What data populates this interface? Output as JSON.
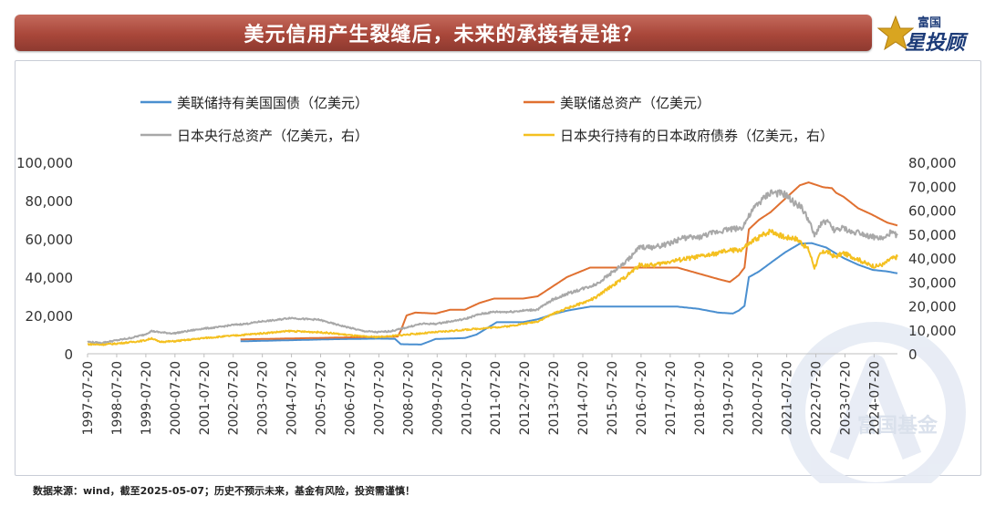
{
  "header": {
    "title": "美元信用产生裂缝后，未来的承接者是谁？",
    "logo_top": "富国",
    "logo_bottom": "星投顾"
  },
  "watermark": "富国基金",
  "footer": {
    "source": "数据来源：wind，截至2025-05-07；历史不预示未来，基金有风险，投资需谨慎！"
  },
  "colors": {
    "title_bar": "#a9473a",
    "fed_treasury": "#4a8fd0",
    "fed_total": "#e07030",
    "boj_total": "#a8a8a8",
    "boj_jgb": "#f4c020",
    "brand": "#1c3b78"
  },
  "chart_data": {
    "type": "line",
    "legend": [
      "美联储持有美国国债（亿美元）",
      "美联储总资产（亿美元）",
      "日本央行总资产（亿美元，右）",
      "日本央行持有的日本政府债券（亿美元，右）"
    ],
    "x_tick_labels": [
      "1997-07-20",
      "1998-07-20",
      "1999-07-20",
      "2000-07-20",
      "2001-07-20",
      "2002-07-20",
      "2003-07-20",
      "2004-07-20",
      "2005-07-20",
      "2006-07-20",
      "2007-07-20",
      "2008-07-20",
      "2009-07-20",
      "2010-07-20",
      "2011-07-20",
      "2012-07-20",
      "2013-07-20",
      "2014-07-20",
      "2015-07-20",
      "2016-07-20",
      "2017-07-20",
      "2018-07-20",
      "2019-07-20",
      "2020-07-20",
      "2021-07-20",
      "2022-07-20",
      "2023-07-20",
      "2024-07-20"
    ],
    "x_range": [
      1997.55,
      2025.35
    ],
    "y_left": {
      "min": 0,
      "max": 100000,
      "ticks": [
        "0",
        "20,000",
        "40,000",
        "60,000",
        "80,000",
        "100,000"
      ]
    },
    "y_right": {
      "min": 0,
      "max": 80000,
      "ticks": [
        "0",
        "10,000",
        "20,000",
        "30,000",
        "40,000",
        "50,000",
        "60,000",
        "70,000",
        "80,000"
      ]
    },
    "series": [
      {
        "name": "美联储持有美国国债（亿美元）",
        "axis": "left",
        "color": "#4a8fd0",
        "points": [
          [
            2002.8,
            6500
          ],
          [
            2006.0,
            7600
          ],
          [
            2007.5,
            7900
          ],
          [
            2008.1,
            7800
          ],
          [
            2008.3,
            5000
          ],
          [
            2009.0,
            4800
          ],
          [
            2009.5,
            7700
          ],
          [
            2010.5,
            8200
          ],
          [
            2010.9,
            10000
          ],
          [
            2011.6,
            16500
          ],
          [
            2012.5,
            16500
          ],
          [
            2013.0,
            18000
          ],
          [
            2013.5,
            20500
          ],
          [
            2014.0,
            22500
          ],
          [
            2014.8,
            24600
          ],
          [
            2017.8,
            24600
          ],
          [
            2018.5,
            23500
          ],
          [
            2019.2,
            21500
          ],
          [
            2019.7,
            21000
          ],
          [
            2019.9,
            22500
          ],
          [
            2020.1,
            25000
          ],
          [
            2020.25,
            40000
          ],
          [
            2020.6,
            43000
          ],
          [
            2021.0,
            47500
          ],
          [
            2021.5,
            53000
          ],
          [
            2022.0,
            57500
          ],
          [
            2022.4,
            57800
          ],
          [
            2022.9,
            55500
          ],
          [
            2023.5,
            50000
          ],
          [
            2024.0,
            46500
          ],
          [
            2024.5,
            43800
          ],
          [
            2025.0,
            43000
          ],
          [
            2025.35,
            42000
          ]
        ]
      },
      {
        "name": "美联储总资产（亿美元）",
        "axis": "left",
        "color": "#e07030",
        "points": [
          [
            2002.8,
            7500
          ],
          [
            2006.0,
            8400
          ],
          [
            2007.5,
            8800
          ],
          [
            2008.2,
            9000
          ],
          [
            2008.3,
            12000
          ],
          [
            2008.5,
            20000
          ],
          [
            2008.8,
            21500
          ],
          [
            2009.5,
            21000
          ],
          [
            2010.0,
            23000
          ],
          [
            2010.5,
            23000
          ],
          [
            2011.0,
            26500
          ],
          [
            2011.5,
            28800
          ],
          [
            2012.5,
            28800
          ],
          [
            2013.0,
            30000
          ],
          [
            2013.5,
            35000
          ],
          [
            2014.0,
            40000
          ],
          [
            2014.8,
            45000
          ],
          [
            2017.8,
            45000
          ],
          [
            2018.5,
            42000
          ],
          [
            2019.2,
            39000
          ],
          [
            2019.6,
            37500
          ],
          [
            2019.9,
            41000
          ],
          [
            2020.1,
            45000
          ],
          [
            2020.25,
            65000
          ],
          [
            2020.6,
            70000
          ],
          [
            2021.0,
            74000
          ],
          [
            2021.5,
            81000
          ],
          [
            2022.0,
            88000
          ],
          [
            2022.3,
            89500
          ],
          [
            2022.8,
            87000
          ],
          [
            2023.1,
            86500
          ],
          [
            2023.25,
            84000
          ],
          [
            2023.5,
            82000
          ],
          [
            2024.0,
            76000
          ],
          [
            2024.5,
            72500
          ],
          [
            2025.0,
            68500
          ],
          [
            2025.35,
            67000
          ]
        ]
      },
      {
        "name": "日本央行总资产（亿美元，右）",
        "axis": "right",
        "color": "#a8a8a8",
        "points": [
          [
            1997.55,
            5000
          ],
          [
            1998.0,
            4500
          ],
          [
            1998.5,
            5500
          ],
          [
            1999.0,
            6500
          ],
          [
            1999.5,
            8000
          ],
          [
            1999.75,
            9500
          ],
          [
            2000.0,
            9000
          ],
          [
            2000.5,
            8500
          ],
          [
            2001.0,
            9500
          ],
          [
            2001.5,
            10500
          ],
          [
            2002.0,
            11000
          ],
          [
            2002.5,
            12000
          ],
          [
            2003.0,
            12500
          ],
          [
            2003.5,
            13500
          ],
          [
            2004.0,
            14000
          ],
          [
            2004.5,
            15000
          ],
          [
            2005.0,
            14500
          ],
          [
            2005.5,
            14200
          ],
          [
            2006.0,
            12500
          ],
          [
            2006.5,
            11000
          ],
          [
            2007.0,
            9500
          ],
          [
            2007.5,
            9000
          ],
          [
            2008.0,
            9500
          ],
          [
            2008.5,
            11000
          ],
          [
            2009.0,
            12500
          ],
          [
            2009.5,
            12500
          ],
          [
            2010.0,
            13500
          ],
          [
            2010.5,
            14500
          ],
          [
            2011.0,
            16500
          ],
          [
            2011.5,
            17500
          ],
          [
            2012.0,
            17500
          ],
          [
            2012.5,
            18000
          ],
          [
            2013.0,
            18500
          ],
          [
            2013.5,
            22500
          ],
          [
            2014.0,
            25000
          ],
          [
            2014.5,
            27000
          ],
          [
            2015.0,
            29000
          ],
          [
            2015.5,
            33500
          ],
          [
            2016.0,
            38000
          ],
          [
            2016.5,
            44500
          ],
          [
            2017.0,
            44500
          ],
          [
            2017.5,
            46000
          ],
          [
            2018.0,
            48500
          ],
          [
            2018.5,
            48500
          ],
          [
            2019.0,
            50500
          ],
          [
            2019.5,
            52000
          ],
          [
            2020.0,
            52500
          ],
          [
            2020.5,
            62000
          ],
          [
            2021.0,
            67500
          ],
          [
            2021.5,
            66500
          ],
          [
            2021.8,
            63000
          ],
          [
            2022.0,
            62000
          ],
          [
            2022.3,
            56000
          ],
          [
            2022.5,
            49000
          ],
          [
            2022.7,
            54000
          ],
          [
            2022.9,
            55500
          ],
          [
            2023.2,
            51500
          ],
          [
            2023.5,
            52500
          ],
          [
            2023.8,
            50500
          ],
          [
            2024.0,
            51000
          ],
          [
            2024.3,
            49500
          ],
          [
            2024.6,
            48500
          ],
          [
            2024.9,
            48000
          ],
          [
            2025.1,
            50500
          ],
          [
            2025.35,
            49500
          ]
        ]
      },
      {
        "name": "日本央行持有的日本政府债券（亿美元，右）",
        "axis": "right",
        "color": "#f4c020",
        "points": [
          [
            1997.55,
            4000
          ],
          [
            1998.0,
            3800
          ],
          [
            1998.5,
            4200
          ],
          [
            1999.0,
            4800
          ],
          [
            1999.5,
            5500
          ],
          [
            1999.75,
            6500
          ],
          [
            2000.0,
            5000
          ],
          [
            2000.5,
            5200
          ],
          [
            2001.0,
            5800
          ],
          [
            2001.5,
            6500
          ],
          [
            2002.0,
            7000
          ],
          [
            2002.5,
            7500
          ],
          [
            2003.0,
            8000
          ],
          [
            2003.5,
            8500
          ],
          [
            2004.0,
            9000
          ],
          [
            2004.5,
            9500
          ],
          [
            2005.0,
            9200
          ],
          [
            2005.5,
            9000
          ],
          [
            2006.0,
            8500
          ],
          [
            2006.5,
            7800
          ],
          [
            2007.0,
            7200
          ],
          [
            2007.5,
            7000
          ],
          [
            2008.0,
            7400
          ],
          [
            2008.5,
            8000
          ],
          [
            2009.0,
            8500
          ],
          [
            2009.5,
            9000
          ],
          [
            2010.0,
            9500
          ],
          [
            2010.5,
            10000
          ],
          [
            2011.0,
            10500
          ],
          [
            2011.5,
            11000
          ],
          [
            2012.0,
            11500
          ],
          [
            2012.5,
            12500
          ],
          [
            2013.0,
            13500
          ],
          [
            2013.5,
            16500
          ],
          [
            2014.0,
            19000
          ],
          [
            2014.5,
            21000
          ],
          [
            2015.0,
            23500
          ],
          [
            2015.5,
            28000
          ],
          [
            2016.0,
            32000
          ],
          [
            2016.5,
            37000
          ],
          [
            2017.0,
            37000
          ],
          [
            2017.5,
            38500
          ],
          [
            2018.0,
            39500
          ],
          [
            2018.5,
            40500
          ],
          [
            2019.0,
            41500
          ],
          [
            2019.5,
            43000
          ],
          [
            2020.0,
            43500
          ],
          [
            2020.5,
            48000
          ],
          [
            2021.0,
            51500
          ],
          [
            2021.5,
            48500
          ],
          [
            2021.8,
            48500
          ],
          [
            2022.0,
            47000
          ],
          [
            2022.3,
            43500
          ],
          [
            2022.5,
            36000
          ],
          [
            2022.7,
            41500
          ],
          [
            2022.9,
            43000
          ],
          [
            2023.2,
            40500
          ],
          [
            2023.5,
            42000
          ],
          [
            2023.8,
            40500
          ],
          [
            2024.0,
            39500
          ],
          [
            2024.3,
            37500
          ],
          [
            2024.6,
            36500
          ],
          [
            2024.9,
            37500
          ],
          [
            2025.1,
            39500
          ],
          [
            2025.35,
            40500
          ]
        ]
      }
    ]
  }
}
